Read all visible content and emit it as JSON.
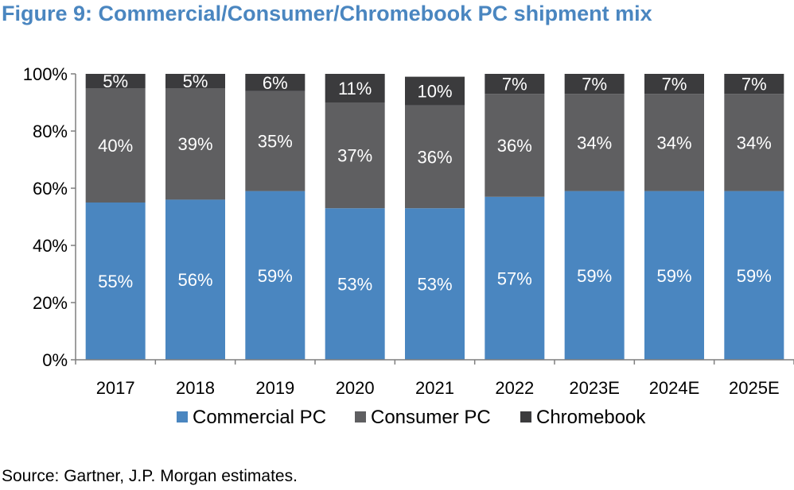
{
  "title": "Figure 9: Commercial/Consumer/Chromebook PC shipment mix",
  "source": "Source: Gartner, J.P. Morgan estimates.",
  "chart_data": {
    "type": "bar",
    "stacked": true,
    "categories": [
      "2017",
      "2018",
      "2019",
      "2020",
      "2021",
      "2022",
      "2023E",
      "2024E",
      "2025E"
    ],
    "series": [
      {
        "name": "Commercial PC",
        "color": "#4a86c0",
        "values": [
          55,
          56,
          59,
          53,
          53,
          57,
          59,
          59,
          59
        ]
      },
      {
        "name": "Consumer PC",
        "color": "#5f5f61",
        "values": [
          40,
          39,
          35,
          37,
          36,
          36,
          34,
          34,
          34
        ]
      },
      {
        "name": "Chromebook",
        "color": "#3b3b3d",
        "values": [
          5,
          5,
          6,
          11,
          10,
          7,
          7,
          7,
          7
        ]
      }
    ],
    "ylim": [
      0,
      100
    ],
    "yticks": [
      "0%",
      "20%",
      "40%",
      "60%",
      "80%",
      "100%"
    ],
    "value_suffix": "%",
    "grid": false,
    "legend": "bottom"
  }
}
